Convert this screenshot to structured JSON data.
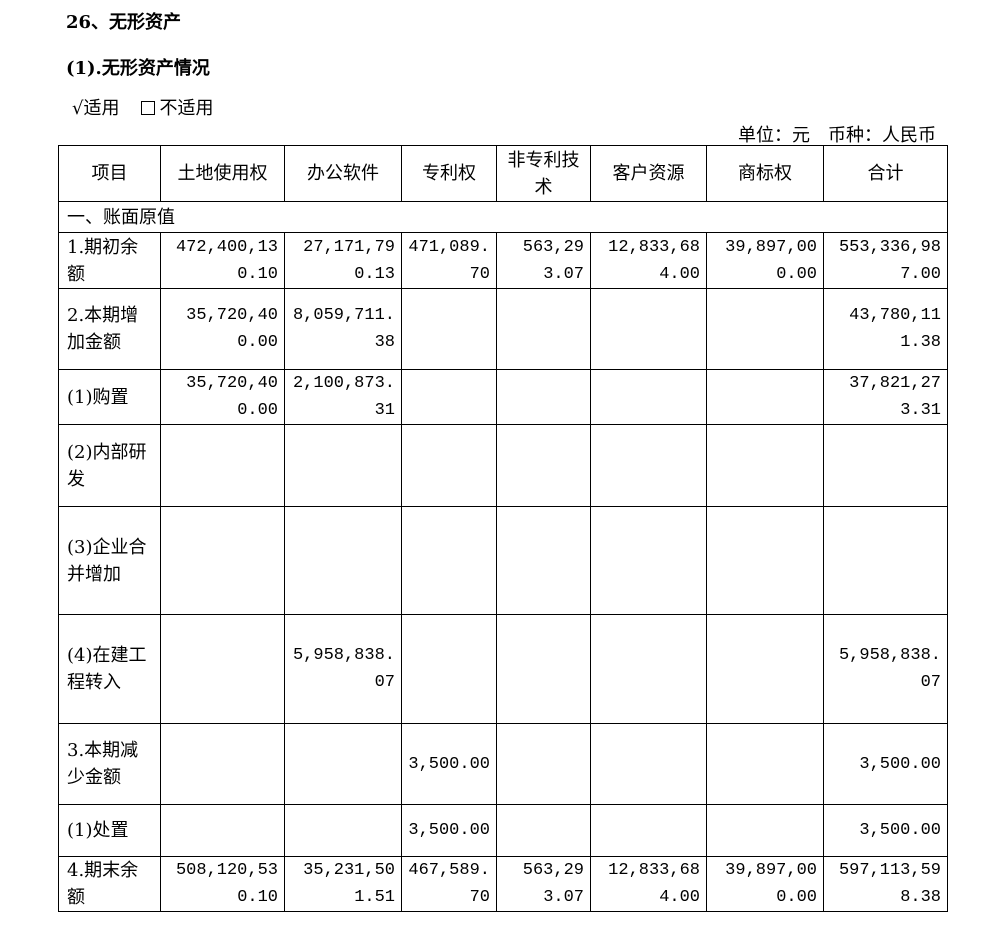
{
  "title": "26、无形资产",
  "subtitle": "(1).无形资产情况",
  "options": {
    "applicable": "√适用",
    "not_applicable": "不适用"
  },
  "unit": "单位：元　币种：人民币",
  "headers": [
    "项目",
    "土地使用权",
    "办公软件",
    "专利权",
    "非专利技术",
    "客户资源",
    "商标权",
    "合计"
  ],
  "section": "一、账面原值",
  "rows": [
    {
      "label": "1.期初余额",
      "values": [
        "472,400,130.10",
        "27,171,790.13",
        "471,089.70",
        "563,293.07",
        "12,833,684.00",
        "39,897,000.00",
        "553,336,987.00"
      ]
    },
    {
      "label": "2.本期增加金额",
      "values": [
        "35,720,400.00",
        "8,059,711.38",
        "",
        "",
        "",
        "",
        "43,780,111.38"
      ]
    },
    {
      "label": "(1)购置",
      "values": [
        "35,720,400.00",
        "2,100,873.31",
        "",
        "",
        "",
        "",
        "37,821,273.31"
      ]
    },
    {
      "label": "(2)内部研发",
      "values": [
        "",
        "",
        "",
        "",
        "",
        "",
        ""
      ]
    },
    {
      "label": "(3)企业合并增加",
      "values": [
        "",
        "",
        "",
        "",
        "",
        "",
        ""
      ]
    },
    {
      "label": "(4)在建工程转入",
      "values": [
        "",
        "5,958,838.07",
        "",
        "",
        "",
        "",
        "5,958,838.07"
      ]
    },
    {
      "label": "3.本期减少金额",
      "values": [
        "",
        "",
        "3,500.00",
        "",
        "",
        "",
        "3,500.00"
      ]
    },
    {
      "label": "(1)处置",
      "values": [
        "",
        "",
        "3,500.00",
        "",
        "",
        "",
        "3,500.00"
      ]
    },
    {
      "label": "4.期末余额",
      "values": [
        "508,120,530.10",
        "35,231,501.51",
        "467,589.70",
        "563,293.07",
        "12,833,684.00",
        "39,897,000.00",
        "597,113,598.38"
      ]
    }
  ]
}
